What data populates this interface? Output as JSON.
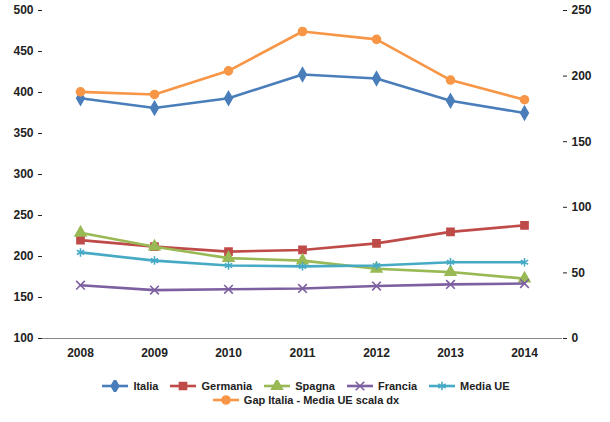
{
  "chart_data": {
    "type": "line",
    "categories": [
      "2008",
      "2009",
      "2010",
      "2011",
      "2012",
      "2013",
      "2014"
    ],
    "series": [
      {
        "name": "Italia",
        "color": "#4a7ebb",
        "marker": "diamond",
        "line_style": "solid",
        "values": [
          393,
          381,
          393,
          422,
          417,
          390,
          375
        ]
      },
      {
        "name": "Germania",
        "color": "#be4b48",
        "marker": "square",
        "line_style": "solid",
        "values": [
          220,
          212,
          206,
          208,
          216,
          230,
          238
        ]
      },
      {
        "name": "Spagna",
        "color": "#98b954",
        "marker": "triangle",
        "line_style": "solid",
        "values": [
          229,
          212,
          198,
          195,
          185,
          181,
          173
        ]
      },
      {
        "name": "Francia",
        "color": "#7d60a0",
        "marker": "times",
        "line_style": "solid",
        "values": [
          165,
          159,
          160,
          161,
          164,
          166,
          167
        ]
      },
      {
        "name": "Media UE",
        "color": "#46aac5",
        "marker": "asterisk",
        "line_style": "solid",
        "values": [
          205,
          195,
          189,
          188,
          189,
          193,
          193
        ]
      },
      {
        "name": "Gap Italia - Media UE scala dx",
        "color": "#f79646",
        "marker": "circle",
        "line_style": "solid",
        "axis": "y2",
        "values": [
          188,
          186,
          204,
          234,
          228,
          197,
          182
        ]
      }
    ],
    "ylim": [
      100,
      500
    ],
    "yticks": [
      100,
      150,
      200,
      250,
      300,
      350,
      400,
      450,
      500
    ],
    "y2lim": [
      0,
      250
    ],
    "y2ticks": [
      0,
      50,
      100,
      150,
      200,
      250
    ],
    "grid": false,
    "legend": "bottom"
  }
}
